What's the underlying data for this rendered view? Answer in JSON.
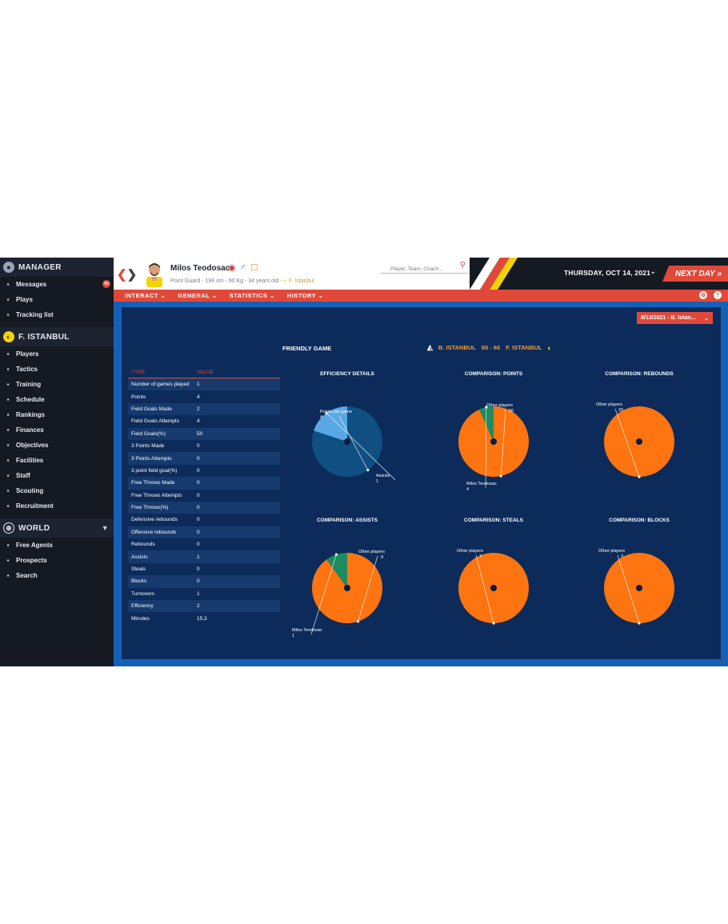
{
  "sidebar": {
    "manager": {
      "title": "MANAGER",
      "items": [
        {
          "label": "Messages",
          "icon": "inbox-icon",
          "badge": "50"
        },
        {
          "label": "Plays",
          "icon": "clipboard-icon"
        },
        {
          "label": "Tracking list",
          "icon": "star-icon"
        }
      ]
    },
    "club": {
      "title": "F. ISTANBUL",
      "items": [
        {
          "label": "Players",
          "icon": "players-icon"
        },
        {
          "label": "Tactics",
          "icon": "tactics-icon"
        },
        {
          "label": "Training",
          "icon": "training-icon"
        },
        {
          "label": "Schedule",
          "icon": "calendar-icon"
        },
        {
          "label": "Rankings",
          "icon": "rankings-icon"
        },
        {
          "label": "Finances",
          "icon": "finances-icon"
        },
        {
          "label": "Objectives",
          "icon": "objectives-icon"
        },
        {
          "label": "Facilities",
          "icon": "facilities-icon"
        },
        {
          "label": "Staff",
          "icon": "staff-icon"
        },
        {
          "label": "Scouting",
          "icon": "binoculars-icon"
        },
        {
          "label": "Recruitment",
          "icon": "recruitment-icon"
        }
      ]
    },
    "world": {
      "title": "WORLD",
      "items": [
        {
          "label": "Free Agents",
          "icon": "free-agents-icon"
        },
        {
          "label": "Prospects",
          "icon": "rocket-icon"
        },
        {
          "label": "Search",
          "icon": "search-icon"
        }
      ]
    }
  },
  "header": {
    "player_name": "Milos Teodosac",
    "player_info": "Point Guard - 196 cm - 90 Kg - 34 years old - ",
    "player_team": "F. Istanbul",
    "search_placeholder": "Player, Team, Coach...",
    "date": "THURSDAY, OCT 14, 2021",
    "next_day": "NEXT DAY"
  },
  "tabs": [
    "INTERACT",
    "GENERAL",
    "STATISTICS",
    "HISTORY"
  ],
  "game": {
    "date_select": "8/13/2021 - B. Istan...",
    "type": "FRIENDLY GAME",
    "home": "B. ISTANBUL",
    "score": "65 - 60",
    "away": "F. ISTANBUL"
  },
  "stats": {
    "header": {
      "type": "TYPE",
      "value": "VALUE"
    },
    "rows": [
      {
        "type": "Number of games played",
        "value": "1"
      },
      {
        "type": "Points",
        "value": "4"
      },
      {
        "type": "Field Goals Made",
        "value": "2"
      },
      {
        "type": "Field Goals Attempts",
        "value": "4"
      },
      {
        "type": "Field Goals(%)",
        "value": "50"
      },
      {
        "type": "3 Points Made",
        "value": "0"
      },
      {
        "type": "3 Points Attempts",
        "value": "0"
      },
      {
        "type": "3 point field goal(%)",
        "value": "0"
      },
      {
        "type": "Free Throws Made",
        "value": "0"
      },
      {
        "type": "Free Throws Attempts",
        "value": "0"
      },
      {
        "type": "Free Throws(%)",
        "value": "0"
      },
      {
        "type": "Defensive rebounds",
        "value": "0"
      },
      {
        "type": "Offensive rebounds",
        "value": "0"
      },
      {
        "type": "Rebounds",
        "value": "0"
      },
      {
        "type": "Assists",
        "value": "1"
      },
      {
        "type": "Steals",
        "value": "0"
      },
      {
        "type": "Blocks",
        "value": "0"
      },
      {
        "type": "Turnovers",
        "value": "1"
      },
      {
        "type": "Efficiency",
        "value": "2"
      },
      {
        "type": "Minutes",
        "value": "15,3"
      }
    ]
  },
  "colors": {
    "accent": "#e0493a",
    "panel": "#0c2b5a",
    "orange": "#fd7410",
    "green": "#1f8a5f",
    "dark_blue": "#0f4f82",
    "light_blue": "#58a8e6"
  },
  "chart_data": [
    {
      "type": "pie",
      "title": "EFFICIENCY DETAILS",
      "slices": [
        {
          "label": "Points per game",
          "value": 4
        },
        {
          "label": "Assists",
          "value": 1
        }
      ]
    },
    {
      "type": "pie",
      "title": "COMPARISON: POINTS",
      "slices": [
        {
          "label": "Other players",
          "value": 56
        },
        {
          "label": "Milos Teodosac",
          "value": 4
        }
      ]
    },
    {
      "type": "pie",
      "title": "COMPARISON: REBOUNDS",
      "slices": [
        {
          "label": "Other players",
          "value": 20
        }
      ]
    },
    {
      "type": "pie",
      "title": "COMPARISON: ASSISTS",
      "slices": [
        {
          "label": "Other players",
          "value": 9
        },
        {
          "label": "Milos Teodosac",
          "value": 1
        }
      ]
    },
    {
      "type": "pie",
      "title": "COMPARISON: STEALS",
      "slices": [
        {
          "label": "Other players",
          "value": 7
        }
      ]
    },
    {
      "type": "pie",
      "title": "COMPARISON: BLOCKS",
      "slices": [
        {
          "label": "Other players",
          "value": 3
        }
      ]
    }
  ]
}
